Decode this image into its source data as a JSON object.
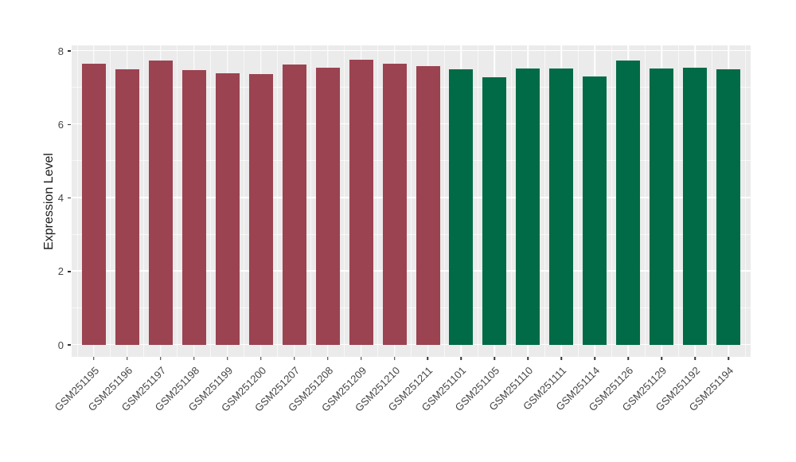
{
  "chart_data": {
    "type": "bar",
    "title": "",
    "xlabel": "",
    "ylabel": "Expression Level",
    "ylim": [
      0,
      8.2
    ],
    "yticks": [
      0,
      2,
      4,
      6,
      8
    ],
    "minor_yticks": [
      1,
      3,
      5,
      7
    ],
    "grid": "white major and minor gridlines on gray panel",
    "legend_position": "none",
    "categories": [
      "GSM251195",
      "GSM251196",
      "GSM251197",
      "GSM251198",
      "GSM251199",
      "GSM251200",
      "GSM251207",
      "GSM251208",
      "GSM251209",
      "GSM251210",
      "GSM251211",
      "GSM251101",
      "GSM251105",
      "GSM251110",
      "GSM251111",
      "GSM251114",
      "GSM251126",
      "GSM251129",
      "GSM251192",
      "GSM251194"
    ],
    "values": [
      7.66,
      7.5,
      7.75,
      7.47,
      7.39,
      7.38,
      7.63,
      7.55,
      7.76,
      7.65,
      7.59,
      7.5,
      7.28,
      7.52,
      7.52,
      7.3,
      7.74,
      7.53,
      7.55,
      7.51
    ],
    "bar_group": [
      "red",
      "red",
      "red",
      "red",
      "red",
      "red",
      "red",
      "red",
      "red",
      "red",
      "red",
      "green",
      "green",
      "green",
      "green",
      "green",
      "green",
      "green",
      "green",
      "green"
    ]
  },
  "style": {
    "palette": {
      "red": "#9B4351",
      "green": "#006B46"
    },
    "panel_bg": "#EBEBEB",
    "grid_color": "#FFFFFF",
    "tick_mark_color": "#333333",
    "axis_text_color": "#454545",
    "axis_title_color": "#1A1A1A",
    "background": "#FFFFFF"
  }
}
